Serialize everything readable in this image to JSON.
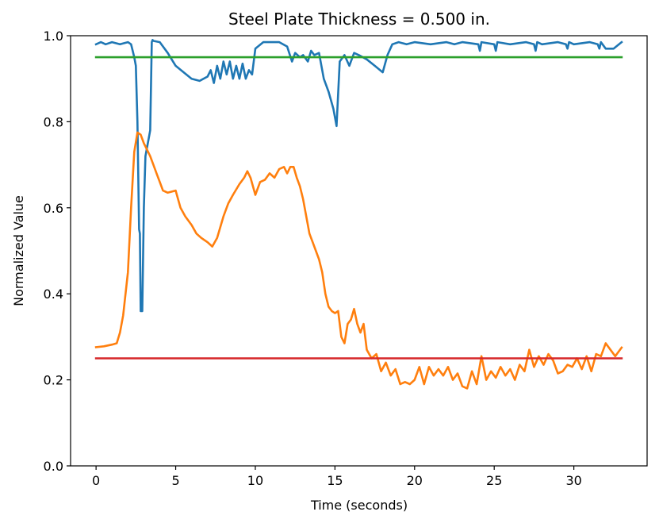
{
  "chart_data": {
    "type": "line",
    "title": "Steel Plate Thickness = 0.500 in.",
    "xlabel": "Time (seconds)",
    "ylabel": "Normalized Value",
    "xlim": [
      -1.6,
      34.6
    ],
    "ylim": [
      0.0,
      1.0
    ],
    "xticks": [
      0,
      5,
      10,
      15,
      20,
      25,
      30
    ],
    "yticks": [
      0.0,
      0.2,
      0.4,
      0.6,
      0.8,
      1.0
    ],
    "xtick_labels": [
      "0",
      "5",
      "10",
      "15",
      "20",
      "25",
      "30"
    ],
    "ytick_labels": [
      "0.0",
      "0.2",
      "0.4",
      "0.6",
      "0.8",
      "1.0"
    ],
    "grid": false,
    "series": [
      {
        "name": "blue",
        "color": "#1f77b4",
        "x": [
          0,
          0.3,
          0.6,
          1.0,
          1.5,
          2.0,
          2.2,
          2.4,
          2.5,
          2.6,
          2.7,
          2.75,
          2.8,
          2.9,
          3.0,
          3.1,
          3.2,
          3.3,
          3.4,
          3.5,
          3.55,
          3.6,
          4.0,
          4.5,
          5.0,
          5.5,
          6.0,
          6.5,
          7.0,
          7.2,
          7.4,
          7.6,
          7.8,
          8.0,
          8.2,
          8.4,
          8.6,
          8.8,
          9.0,
          9.2,
          9.4,
          9.6,
          9.8,
          10.0,
          10.5,
          11.0,
          11.5,
          12.0,
          12.3,
          12.5,
          12.8,
          13.0,
          13.3,
          13.5,
          13.7,
          14.0,
          14.3,
          14.6,
          14.9,
          15.1,
          15.3,
          15.6,
          15.9,
          16.2,
          16.5,
          17.0,
          17.5,
          18.0,
          18.3,
          18.6,
          19.0,
          19.5,
          20.0,
          21.0,
          22.0,
          22.5,
          23.0,
          24.0,
          24.1,
          24.2,
          25.0,
          25.1,
          25.2,
          26.0,
          27.0,
          27.5,
          27.6,
          27.7,
          28.0,
          29.0,
          29.5,
          29.6,
          29.7,
          30.0,
          31.0,
          31.5,
          31.6,
          31.7,
          32.0,
          32.5,
          33.0
        ],
        "y": [
          0.98,
          0.985,
          0.98,
          0.985,
          0.98,
          0.985,
          0.98,
          0.95,
          0.93,
          0.8,
          0.55,
          0.54,
          0.36,
          0.36,
          0.6,
          0.72,
          0.74,
          0.76,
          0.78,
          0.985,
          0.99,
          0.988,
          0.985,
          0.96,
          0.93,
          0.915,
          0.9,
          0.895,
          0.905,
          0.92,
          0.89,
          0.93,
          0.9,
          0.94,
          0.91,
          0.94,
          0.9,
          0.93,
          0.9,
          0.935,
          0.9,
          0.92,
          0.91,
          0.97,
          0.985,
          0.985,
          0.985,
          0.975,
          0.94,
          0.96,
          0.95,
          0.955,
          0.94,
          0.965,
          0.955,
          0.96,
          0.9,
          0.87,
          0.83,
          0.79,
          0.94,
          0.955,
          0.93,
          0.96,
          0.955,
          0.945,
          0.93,
          0.915,
          0.955,
          0.98,
          0.985,
          0.98,
          0.985,
          0.98,
          0.985,
          0.98,
          0.985,
          0.98,
          0.965,
          0.985,
          0.98,
          0.965,
          0.985,
          0.98,
          0.985,
          0.98,
          0.965,
          0.985,
          0.98,
          0.985,
          0.98,
          0.97,
          0.985,
          0.98,
          0.985,
          0.98,
          0.97,
          0.985,
          0.97,
          0.97,
          0.985
        ]
      },
      {
        "name": "orange",
        "color": "#ff7f0e",
        "x": [
          0,
          0.5,
          1.0,
          1.3,
          1.5,
          1.7,
          2.0,
          2.2,
          2.4,
          2.6,
          2.8,
          3.0,
          3.2,
          3.4,
          3.6,
          3.8,
          4.0,
          4.2,
          4.5,
          5.0,
          5.3,
          5.6,
          6.0,
          6.3,
          6.6,
          7.0,
          7.3,
          7.6,
          8.0,
          8.3,
          8.6,
          9.0,
          9.3,
          9.5,
          9.7,
          10.0,
          10.3,
          10.6,
          10.9,
          11.2,
          11.5,
          11.8,
          12.0,
          12.2,
          12.4,
          12.6,
          12.8,
          13.0,
          13.2,
          13.4,
          13.6,
          13.8,
          14.0,
          14.2,
          14.4,
          14.6,
          14.8,
          15.0,
          15.2,
          15.4,
          15.6,
          15.8,
          16.0,
          16.2,
          16.4,
          16.6,
          16.8,
          17.0,
          17.3,
          17.6,
          17.9,
          18.2,
          18.5,
          18.8,
          19.1,
          19.4,
          19.7,
          20.0,
          20.3,
          20.6,
          20.9,
          21.2,
          21.5,
          21.8,
          22.1,
          22.4,
          22.7,
          23.0,
          23.3,
          23.6,
          23.9,
          24.2,
          24.5,
          24.8,
          25.1,
          25.4,
          25.7,
          26.0,
          26.3,
          26.6,
          26.9,
          27.2,
          27.5,
          27.8,
          28.1,
          28.4,
          28.7,
          29.0,
          29.3,
          29.6,
          29.9,
          30.2,
          30.5,
          30.8,
          31.1,
          31.4,
          31.7,
          32.0,
          32.3,
          32.6,
          33.0
        ],
        "y": [
          0.276,
          0.278,
          0.282,
          0.285,
          0.31,
          0.35,
          0.45,
          0.6,
          0.73,
          0.775,
          0.77,
          0.75,
          0.735,
          0.72,
          0.7,
          0.68,
          0.66,
          0.64,
          0.635,
          0.64,
          0.6,
          0.58,
          0.56,
          0.54,
          0.53,
          0.52,
          0.51,
          0.53,
          0.58,
          0.61,
          0.63,
          0.655,
          0.67,
          0.685,
          0.67,
          0.63,
          0.66,
          0.665,
          0.68,
          0.67,
          0.69,
          0.695,
          0.68,
          0.695,
          0.695,
          0.67,
          0.65,
          0.62,
          0.58,
          0.54,
          0.52,
          0.5,
          0.48,
          0.45,
          0.4,
          0.37,
          0.36,
          0.355,
          0.36,
          0.3,
          0.285,
          0.33,
          0.34,
          0.365,
          0.33,
          0.31,
          0.33,
          0.27,
          0.25,
          0.26,
          0.22,
          0.24,
          0.21,
          0.225,
          0.19,
          0.195,
          0.19,
          0.2,
          0.23,
          0.19,
          0.23,
          0.21,
          0.225,
          0.21,
          0.23,
          0.2,
          0.215,
          0.185,
          0.18,
          0.22,
          0.19,
          0.255,
          0.2,
          0.22,
          0.205,
          0.23,
          0.21,
          0.225,
          0.2,
          0.235,
          0.22,
          0.27,
          0.23,
          0.255,
          0.235,
          0.26,
          0.245,
          0.215,
          0.22,
          0.235,
          0.23,
          0.25,
          0.225,
          0.255,
          0.22,
          0.26,
          0.255,
          0.285,
          0.27,
          0.255,
          0.275
        ]
      },
      {
        "name": "green",
        "color": "#2ca02c",
        "x": [
          0,
          33
        ],
        "y": [
          0.95,
          0.95
        ]
      },
      {
        "name": "red",
        "color": "#d62728",
        "x": [
          0,
          33
        ],
        "y": [
          0.25,
          0.25
        ]
      }
    ]
  }
}
